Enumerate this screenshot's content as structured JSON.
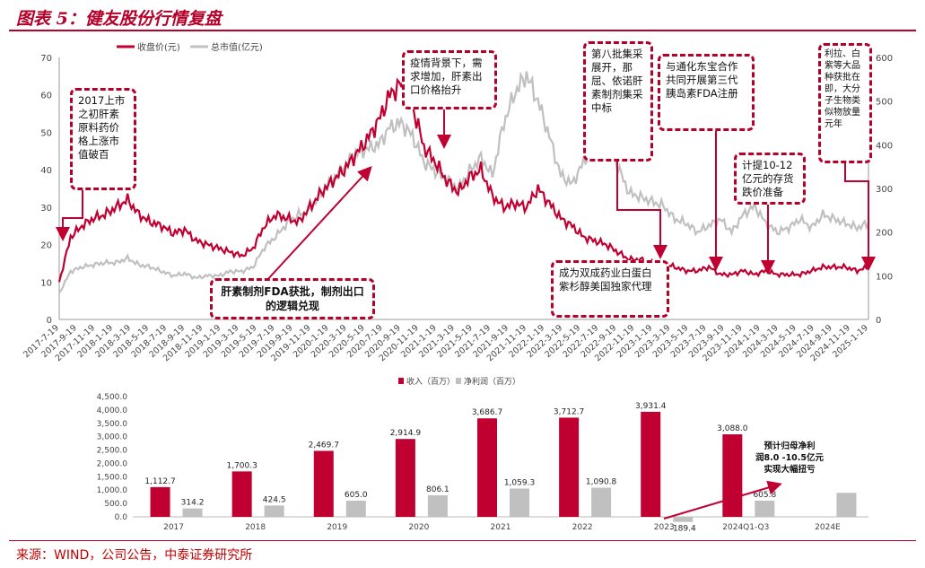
{
  "header": {
    "title": "图表 5：健友股份行情复盘"
  },
  "footer": {
    "source": "来源：WIND，公司公告，中泰证券研究所"
  },
  "chart_data": [
    {
      "type": "line",
      "legend": [
        "收盘价(元)",
        "总市值(亿元)"
      ],
      "legend_position": "top",
      "y_left": {
        "ticks": [
          0,
          10,
          20,
          30,
          40,
          50,
          60,
          70
        ],
        "range": [
          0,
          70
        ]
      },
      "y_right": {
        "ticks": [
          0,
          100,
          200,
          300,
          400,
          500,
          600
        ],
        "range": [
          0,
          600
        ]
      },
      "x_ticks": [
        "2017-7-19",
        "2017-9-19",
        "2017-11-19",
        "2018-1-19",
        "2018-3-19",
        "2018-5-19",
        "2018-7-19",
        "2018-9-19",
        "2018-11-19",
        "2019-1-19",
        "2019-3-19",
        "2019-5-19",
        "2019-7-19",
        "2019-9-19",
        "2019-11-19",
        "2020-1-19",
        "2020-3-19",
        "2020-5-19",
        "2020-7-19",
        "2020-9-19",
        "2020-11-19",
        "2021-1-19",
        "2021-3-19",
        "2021-5-19",
        "2021-7-19",
        "2021-9-19",
        "2021-11-19",
        "2022-1-19",
        "2022-3-19",
        "2022-5-19",
        "2022-7-19",
        "2022-9-19",
        "2022-11-19",
        "2023-1-19",
        "2023-3-19",
        "2023-5-19",
        "2023-7-19",
        "2023-9-19",
        "2023-11-19",
        "2024-1-19",
        "2024-3-19",
        "2024-5-19",
        "2024-7-19",
        "2024-9-19",
        "2024-11-19",
        "2025-1-19"
      ],
      "series": [
        {
          "name": "收盘价(元)",
          "color": "#c00030",
          "axis": "left",
          "values": [
            10,
            22,
            25,
            27,
            28,
            30,
            32,
            28,
            26,
            25,
            23,
            24,
            21,
            20,
            19,
            18,
            17,
            19,
            25,
            28,
            27,
            26,
            30,
            34,
            37,
            40,
            44,
            48,
            53,
            60,
            63,
            57,
            46,
            42,
            37,
            34,
            38,
            40,
            33,
            30,
            31,
            30,
            35,
            31,
            27,
            25,
            22,
            21,
            20,
            18,
            16,
            16,
            15,
            15,
            14,
            13,
            13,
            14,
            12,
            12,
            13,
            12,
            13,
            12,
            12,
            12,
            13,
            14,
            14,
            14,
            13,
            14
          ]
        },
        {
          "name": "总市值(亿元)",
          "color": "#c0c0c0",
          "axis": "right",
          "values": [
            60,
            110,
            120,
            125,
            130,
            130,
            140,
            125,
            120,
            110,
            100,
            105,
            95,
            100,
            100,
            110,
            110,
            120,
            165,
            190,
            220,
            240,
            250,
            290,
            320,
            350,
            380,
            390,
            400,
            440,
            450,
            420,
            360,
            340,
            320,
            300,
            340,
            370,
            330,
            450,
            520,
            560,
            500,
            420,
            330,
            310,
            360,
            400,
            420,
            350,
            290,
            280,
            270,
            260,
            230,
            220,
            200,
            215,
            230,
            200,
            240,
            260,
            220,
            200,
            210,
            230,
            210,
            240,
            230,
            220,
            210,
            220
          ]
        }
      ],
      "callouts": [
        "2017上市之初肝素原料药价格上涨市值破百",
        "肝素制剂FDA获批，制剂出口的逻辑兑现",
        "疫情背景下，需求增加，肝素出口价格抬升",
        "第八批集采展开，那屈、依诺肝素制剂集采中标",
        "成为双成药业白蛋白紫杉醇美国独家代理",
        "与通化东宝合作共同开展第三代胰岛素FDA注册",
        "计提10-12亿元的存货跌价准备",
        "利拉、白紫等大品种获批在即，大分子生物类似物放量元年"
      ]
    },
    {
      "type": "bar",
      "legend": [
        "收入（百万）",
        "净利润（百万）"
      ],
      "legend_position": "top",
      "y_ticks": [
        "0.0",
        "500.0",
        "1,000.0",
        "1,500.0",
        "2,000.0",
        "2,500.0",
        "3,000.0",
        "3,500.0",
        "4,000.0",
        "4,500.0"
      ],
      "ylim": [
        0,
        4500
      ],
      "categories": [
        "2017",
        "2018",
        "2019",
        "2020",
        "2021",
        "2022",
        "2023",
        "2024Q1-Q3",
        "2024E"
      ],
      "series": [
        {
          "name": "收入（百万）",
          "color": "#c00030",
          "values": [
            1112.7,
            1700.3,
            2469.7,
            2914.9,
            3686.7,
            3712.7,
            3931.4,
            3088.0,
            null
          ],
          "labels": [
            "1,112.7",
            "1,700.3",
            "2,469.7",
            "2,914.9",
            "3,686.7",
            "3,712.7",
            "3,931.4",
            "3,088.0",
            ""
          ]
        },
        {
          "name": "净利润（百万）",
          "color": "#c0c0c0",
          "values": [
            314.2,
            424.5,
            605.0,
            806.1,
            1059.3,
            1090.8,
            -189.4,
            605.8,
            900
          ],
          "labels": [
            "314.2",
            "424.5",
            "605.0",
            "806.1",
            "1,059.3",
            "1,090.8",
            "-189.4",
            "605.8",
            ""
          ]
        }
      ],
      "annotation": "预计归母净利润8.0 -10.5亿元实现大幅扭亏"
    }
  ]
}
